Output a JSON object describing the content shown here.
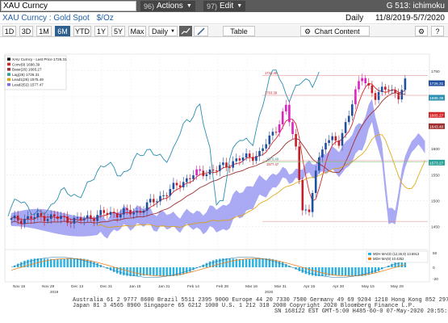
{
  "command": {
    "input_value": "XAU Curncy"
  },
  "menus": [
    {
      "num": "96)",
      "label": "Actions"
    },
    {
      "num": "97)",
      "label": "Edit"
    }
  ],
  "screen_title": "G 513: ichimoku",
  "security": {
    "name": "XAU Curncy : Gold Spot",
    "unit": "$/Oz"
  },
  "period": "Daily",
  "date_range": "11/8/2019-5/7/2020",
  "toolbar": {
    "ranges": [
      "1D",
      "3D",
      "1M",
      "6M",
      "YTD",
      "1Y",
      "5Y",
      "Max"
    ],
    "active_range": "6M",
    "frequency": "Daily",
    "table_label": "Table",
    "chart_content_label": "Chart Content"
  },
  "legend": {
    "items": [
      {
        "label": "XAU Curncy - Last Price 1726.31",
        "color": "#111111"
      },
      {
        "label": "Conv(9) 1698.39",
        "color": "#d62728"
      },
      {
        "label": "Base(26) 1665.27",
        "color": "#a03030"
      },
      {
        "label": "Lag(26) 1726.31",
        "color": "#2aa198"
      },
      {
        "label": "Lead1(26) 1575.49",
        "color": "#e0a000"
      },
      {
        "label": "Lead2(52) 1577.47",
        "color": "#7b68ee"
      }
    ]
  },
  "right_labels": [
    "1750",
    "1726.31",
    "1698.39",
    "1665.27",
    "1643.40",
    "1600",
    "1573.27",
    "1550",
    "1500",
    "1450"
  ],
  "annotations": [
    "1741.40",
    "1703.39",
    "1575.49",
    "1577.47"
  ],
  "x_labels": [
    "Nov 15",
    "Nov 29",
    "Dec 13",
    "Dec 31",
    "Jan 15",
    "Jan 31",
    "Feb 14",
    "Feb 28",
    "Mar 16",
    "Mar 31",
    "Apr 15",
    "Apr 30",
    "May 15",
    "May 29"
  ],
  "year_labels": [
    "2019",
    "2020"
  ],
  "macd_legend": {
    "items": [
      {
        "label": "MDH MACD (12,26,9) 13.6913",
        "color": "#2ab0e0"
      },
      {
        "label": "MDH MA(9) 10.4352",
        "color": "#f08020"
      }
    ]
  },
  "macd_right_labels": [
    "50",
    "0",
    "-20"
  ],
  "footer": {
    "line1": "Australia 61 2 9777 8600 Brazil 5511 2395 9000 Europe 44 20 7330 7500 Germany 49 69 9204 1210 Hong Kong 852 2977 6000",
    "line2": "Japan 81 3 4565 8900          Singapore 65 6212 1000          U.S. 1 212 318 2000          Copyright 2020 Bloomberg Finance L.P.",
    "line3": "SN 168122 EST GMT-5:00 H485-60-0 07-May-2020 20:55:51"
  }
}
